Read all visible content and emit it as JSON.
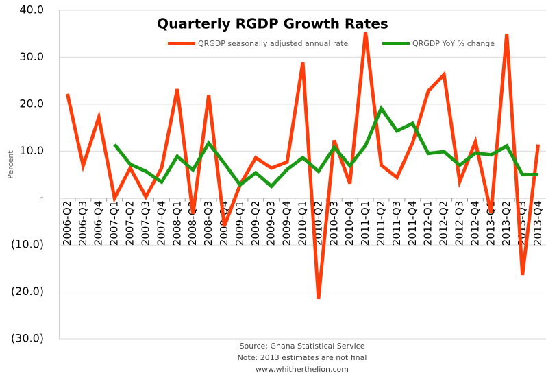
{
  "chart_data": {
    "type": "line",
    "title": "Quarterly  RGDP Growth Rates",
    "ylabel": "Percent",
    "source_lines": [
      "Source: Ghana Statistical Service",
      "Note: 2013 estimates are not final",
      "www.whitherthelion.com"
    ],
    "categories": [
      "2006-Q2",
      "2006-Q3",
      "2006-Q4",
      "2007-Q1",
      "2007-Q2",
      "2007-Q3",
      "2007-Q4",
      "2008-Q1",
      "2008-Q2",
      "2008-Q3",
      "2008-Q4",
      "2009-Q1",
      "2009-Q2",
      "2009-Q3",
      "2009-Q4",
      "2010-Q1",
      "2010-Q2",
      "2010-Q3",
      "2010-Q4",
      "2011-Q1",
      "2011-Q2",
      "2011-Q3",
      "2011-Q4",
      "2012-Q1",
      "2012-Q2",
      "2012-Q3",
      "2012-Q4",
      "2013-Q1",
      "2013-Q2",
      "2013-Q3",
      "2013-Q4"
    ],
    "series": [
      {
        "name": "QRGDP seasonally adjusted annual rate",
        "color": "#ff3d0a",
        "values": [
          22.2,
          6.9,
          17.2,
          0,
          6.4,
          0.3,
          6.4,
          23.2,
          -3.4,
          21.9,
          -6,
          2.8,
          8.6,
          6.4,
          7.7,
          28.9,
          -21.5,
          12.3,
          3.1,
          35.3,
          7.0,
          4.4,
          11.8,
          22.8,
          26.3,
          3.5,
          12.0,
          -3.2,
          35.0,
          -16.4,
          11.4
        ]
      },
      {
        "name": "QRGDP YoY % change",
        "color": "#1a9a14",
        "values": [
          null,
          null,
          null,
          11.4,
          7.2,
          5.7,
          3.4,
          8.9,
          6.0,
          11.7,
          7.4,
          2.8,
          5.4,
          2.5,
          6.1,
          8.6,
          5.7,
          10.8,
          6.9,
          11.2,
          19.1,
          14.3,
          15.9,
          9.5,
          9.9,
          7.0,
          9.6,
          9.2,
          11.1,
          5.0,
          5.0
        ]
      }
    ],
    "ylim": [
      -30,
      40
    ],
    "yticks": [
      {
        "value": 40,
        "label": "40.0"
      },
      {
        "value": 30,
        "label": "30.0"
      },
      {
        "value": 20,
        "label": "20.0"
      },
      {
        "value": 10,
        "label": "10.0"
      },
      {
        "value": 0,
        "label": "-"
      },
      {
        "value": -10,
        "label": "(10.0)"
      },
      {
        "value": -20,
        "label": "(20.0)"
      },
      {
        "value": -30,
        "label": "(30.0)"
      }
    ],
    "grid": true
  }
}
